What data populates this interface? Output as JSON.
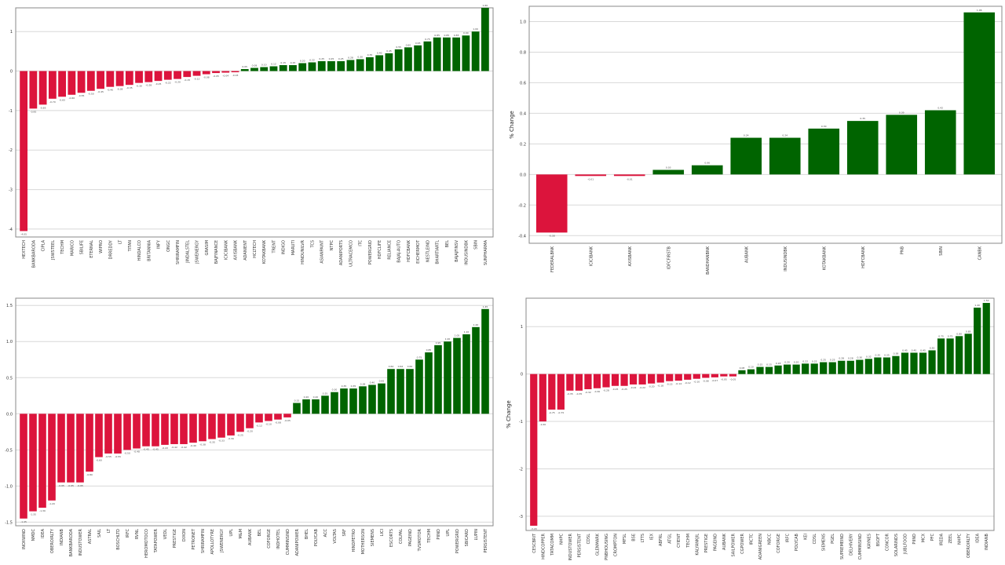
{
  "colors": {
    "negative": "#dc143c",
    "positive": "#006400",
    "grid": "#d8d8d8",
    "frame": "#888888"
  },
  "chart_data": [
    {
      "type": "bar",
      "title": "",
      "ylabel": "",
      "ylim": [
        -4.2,
        1.6
      ],
      "yticks": [
        -4,
        -3,
        -2,
        -1,
        0,
        1
      ],
      "grid": true,
      "categories": [
        "HEXTECH",
        "BANKBARODA",
        "CIPLA",
        "JSWSTEEL",
        "TECHM",
        "MARICO",
        "SBILIFE",
        "ETERNAL",
        "WIPRO",
        "DRREDDY",
        "LT",
        "TITAN",
        "HINDALCO",
        "BRITANNIA",
        "INFY",
        "ONGC",
        "SHRIRAMFIN",
        "JINDALSTEL",
        "JSWENERGY",
        "GRASIM",
        "BAJFINANCE",
        "ICICIBANK",
        "AXISBANK",
        "ADANIENT",
        "HCLTECH",
        "KOTAKBANK",
        "TRENT",
        "INDIGO",
        "MARUTI",
        "HINDUNILVR",
        "TCS",
        "ASIANPAINT",
        "NTPC",
        "ADANIPORTS",
        "ULTRACEMCO",
        "ITC",
        "POWERGRID",
        "HDFCLIFE",
        "RELIANCE",
        "BAJAJ-AUTO",
        "HDFCBANK",
        "EICHERMOT",
        "NESTLEIND",
        "BHARTIARTL",
        "BEL",
        "BAJAJFINSV",
        "INDUSINDBK",
        "SBIN",
        "SUNPHARMA"
      ],
      "values": [
        -4.05,
        -0.95,
        -0.85,
        -0.7,
        -0.65,
        -0.6,
        -0.55,
        -0.5,
        -0.45,
        -0.4,
        -0.38,
        -0.35,
        -0.3,
        -0.28,
        -0.25,
        -0.22,
        -0.2,
        -0.15,
        -0.12,
        -0.08,
        -0.05,
        -0.04,
        -0.03,
        0.05,
        0.08,
        0.1,
        0.12,
        0.15,
        0.15,
        0.2,
        0.22,
        0.25,
        0.25,
        0.25,
        0.28,
        0.3,
        0.35,
        0.4,
        0.45,
        0.55,
        0.6,
        0.65,
        0.75,
        0.85,
        0.85,
        0.85,
        0.9,
        1.0,
        1.6
      ]
    },
    {
      "type": "bar",
      "title": "",
      "ylabel": "% Change",
      "ylim": [
        -0.45,
        1.1
      ],
      "yticks": [
        -0.4,
        -0.2,
        0.0,
        0.2,
        0.4,
        0.6,
        0.8,
        1.0
      ],
      "grid": true,
      "categories": [
        "FEDERALBNK",
        "ICICIBANK",
        "AXISBANK",
        "IDFCFIRSTB",
        "BANDHANBNK",
        "AUBANK",
        "INDUSINDBK",
        "KOTAKBANK",
        "HDFCBANK",
        "PNB",
        "SBIN",
        "CANBK"
      ],
      "values": [
        -0.38,
        -0.01,
        -0.01,
        0.03,
        0.06,
        0.24,
        0.24,
        0.3,
        0.35,
        0.39,
        0.42,
        1.06
      ]
    },
    {
      "type": "bar",
      "title": "",
      "ylabel": "",
      "ylim": [
        -1.55,
        1.6
      ],
      "yticks": [
        -1.5,
        -1.0,
        -0.5,
        0.0,
        0.5,
        1.0,
        1.5
      ],
      "grid": true,
      "categories": [
        "INOXWIND",
        "NMDC",
        "IDEA",
        "OBEROIRLTY",
        "INDIANB",
        "BANKBARODA",
        "INDUSTOWER",
        "ASTRAL",
        "SAIL",
        "LT",
        "BOSCHLTD",
        "IRFC",
        "RVNL",
        "HEROMOTOCO",
        "TATAPOWER",
        "VEDL",
        "PRESTIGE",
        "DIXON",
        "PETRONET",
        "SHRIRAMFIN",
        "APOLLOTYRE",
        "JSWENERGY",
        "UPL",
        "M&M",
        "AUBANK",
        "BEL",
        "COFORGE",
        "INDHOTEL",
        "CUMMINSIND",
        "ADANIPOWER",
        "BHEL",
        "POLYCAB",
        "ACC",
        "VOLTAS",
        "SRF",
        "HINDPETRO",
        "MOTHERSON",
        "SIEMENS",
        "LICI",
        "ESCORTS",
        "COLPAL",
        "PAGEIND",
        "TVSMOTOR",
        "TECHM",
        "PIIND",
        "UPL",
        "POWERGRID",
        "SBICARD",
        "LUPIN",
        "PERSISTENT"
      ],
      "values": [
        -1.45,
        -1.35,
        -1.3,
        -1.2,
        -0.95,
        -0.95,
        -0.95,
        -0.8,
        -0.6,
        -0.55,
        -0.55,
        -0.5,
        -0.48,
        -0.45,
        -0.45,
        -0.43,
        -0.42,
        -0.42,
        -0.4,
        -0.38,
        -0.35,
        -0.33,
        -0.3,
        -0.25,
        -0.2,
        -0.12,
        -0.1,
        -0.08,
        -0.05,
        0.15,
        0.2,
        0.2,
        0.25,
        0.3,
        0.35,
        0.35,
        0.38,
        0.4,
        0.42,
        0.62,
        0.62,
        0.62,
        0.75,
        0.85,
        0.95,
        1.0,
        1.05,
        1.1,
        1.2,
        1.45
      ]
    },
    {
      "type": "bar",
      "title": "",
      "ylabel": "% Change",
      "ylim": [
        -3.3,
        1.6
      ],
      "yticks": [
        -3,
        -2,
        -1,
        0,
        1
      ],
      "grid": true,
      "categories": [
        "CESCBRIT",
        "HINDCOPPER",
        "TATACOMM",
        "NHPC",
        "INDUSTOWER",
        "PERSISTENT",
        "CDSL",
        "GLENMARK",
        "PNBHOUSING",
        "CROMPTON",
        "MFSL",
        "BSE",
        "LTTS",
        "IEX",
        "ABFRL",
        "ATGL",
        "CYIENT",
        "TECHM",
        "KALYANKJIL",
        "PRESTIGE",
        "PAGEIND",
        "AUBANK",
        "SAILPOWER",
        "CGPOWER",
        "IRCTC",
        "ADANIGREEN",
        "NBCC",
        "COFORGE",
        "IRFC",
        "POLYCAB",
        "KEI",
        "CDSL",
        "SIEMENS",
        "PGEL",
        "SUPREMEIND",
        "DELHIVERY",
        "CUMMINSIND",
        "KAYNES",
        "BSOFT",
        "CONCOR",
        "SOLARINDS",
        "JUBLFOOD",
        "PIIND",
        "MCX",
        "PFC",
        "IREDA",
        "ZEEL",
        "NHPC",
        "OBEROIRLTY",
        "IDEA",
        "INDIANB"
      ],
      "values": [
        -3.2,
        -1.0,
        -0.75,
        -0.75,
        -0.35,
        -0.35,
        -0.32,
        -0.3,
        -0.28,
        -0.25,
        -0.25,
        -0.22,
        -0.22,
        -0.2,
        -0.18,
        -0.15,
        -0.14,
        -0.12,
        -0.1,
        -0.08,
        -0.07,
        -0.05,
        -0.05,
        0.08,
        0.1,
        0.15,
        0.15,
        0.18,
        0.2,
        0.2,
        0.22,
        0.22,
        0.25,
        0.25,
        0.28,
        0.28,
        0.3,
        0.32,
        0.35,
        0.35,
        0.38,
        0.45,
        0.45,
        0.45,
        0.5,
        0.75,
        0.75,
        0.8,
        0.85,
        1.4,
        1.5
      ]
    }
  ]
}
